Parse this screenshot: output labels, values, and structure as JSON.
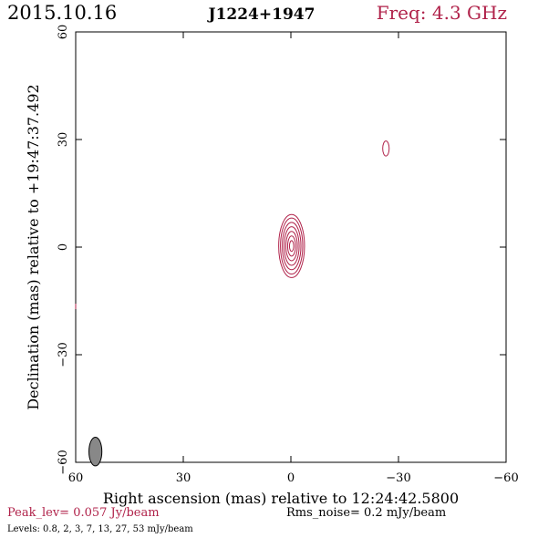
{
  "header": {
    "date": "2015.10.16",
    "source": "J1224+1947",
    "freq": "Freq: 4.3 GHz"
  },
  "footer": {
    "peak": "Peak_lev=  0.057 Jy/beam",
    "rms": "Rms_noise=  0.2 mJy/beam",
    "levels": "Levels: 0.8,   2,   3,   7,   13,   27,   53 mJy/beam"
  },
  "colors": {
    "accent": "#b0224a",
    "axis": "#000000",
    "beam": "#888888"
  },
  "chart_data": {
    "type": "contour",
    "xlabel": "Right ascension (mas) relative to 12:24:42.5800",
    "ylabel": "Declination (mas) relative to +19:47:37.492",
    "xlim": [
      60,
      -60
    ],
    "ylim": [
      -60,
      60
    ],
    "x_ticks": [
      60,
      30,
      0,
      -30,
      -60
    ],
    "y_ticks": [
      60,
      30,
      0,
      -30,
      -60
    ],
    "x_tick_labels": [
      "60",
      "30",
      "0",
      "−30",
      "−60"
    ],
    "y_tick_labels": [
      "60",
      "30",
      "0",
      "−30",
      "−60"
    ],
    "levels_mJy": [
      0.8,
      2,
      3,
      7,
      13,
      27,
      53
    ],
    "components": [
      {
        "x": -0.2,
        "y": 0.3,
        "contours": [
          {
            "a": 3.6,
            "b": 8.8
          },
          {
            "a": 3.1,
            "b": 7.8
          },
          {
            "a": 2.6,
            "b": 6.6
          },
          {
            "a": 2.1,
            "b": 5.4
          },
          {
            "a": 1.6,
            "b": 4.1
          },
          {
            "a": 1.1,
            "b": 2.8
          },
          {
            "a": 0.6,
            "b": 1.5
          }
        ]
      },
      {
        "x": -26.5,
        "y": 27.5,
        "contours": [
          {
            "a": 0.9,
            "b": 2.1
          }
        ]
      }
    ],
    "beam": {
      "x": 54.5,
      "y": -57.0,
      "major": 4.0,
      "minor": 1.8
    },
    "grid": false
  }
}
